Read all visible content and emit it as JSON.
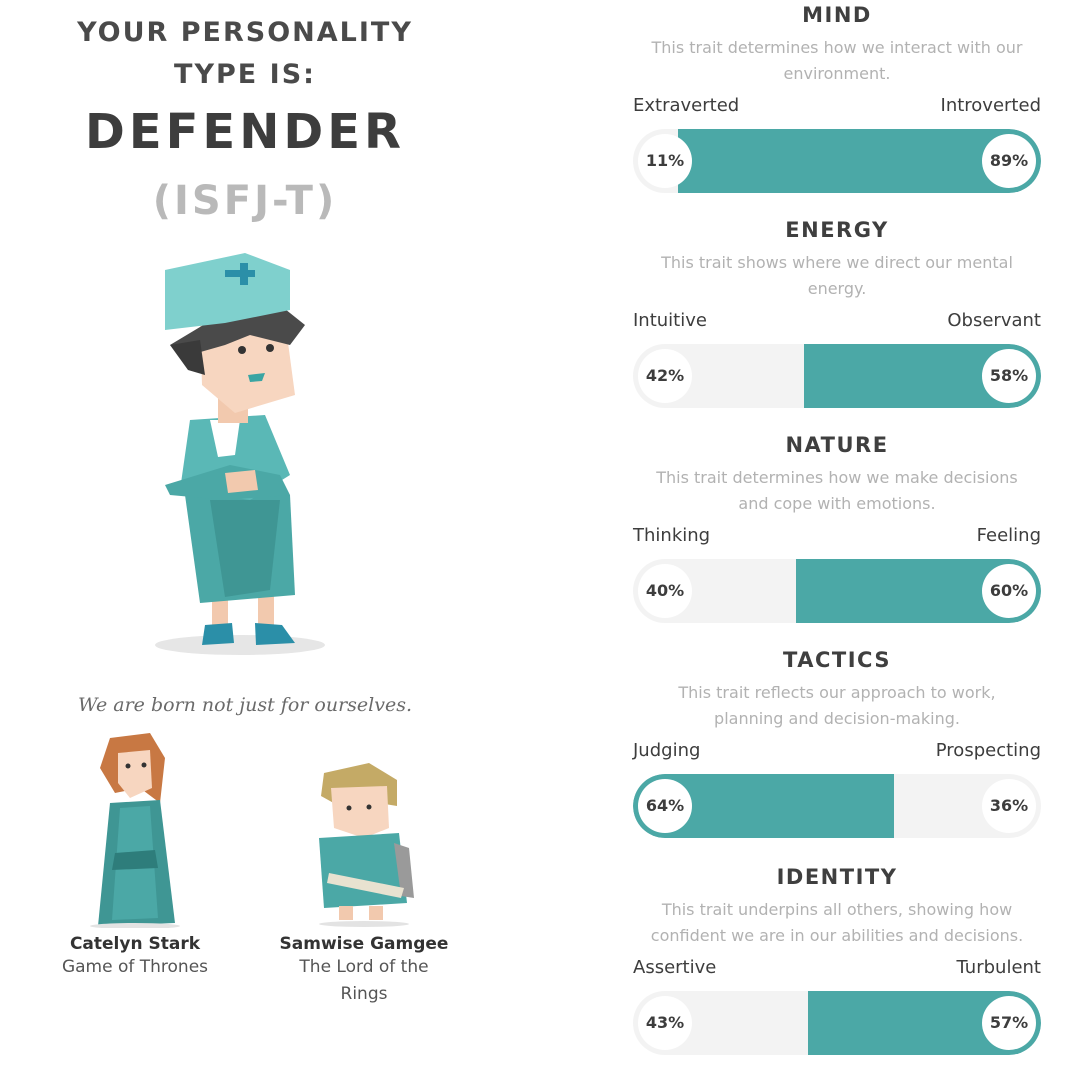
{
  "result": {
    "heading_line1": "YOUR PERSONALITY",
    "heading_line2": "TYPE IS:",
    "type_name": "DEFENDER",
    "type_code": "(ISFJ-T)",
    "quote": "We are born not just for ourselves."
  },
  "characters": [
    {
      "name": "Catelyn Stark",
      "work_line1": "Game of Thrones",
      "work_line2": ""
    },
    {
      "name": "Samwise Gamgee",
      "work_line1": "The Lord of the",
      "work_line2": "Rings"
    }
  ],
  "colors": {
    "accent": "#4ba8a6",
    "track": "#f3f3f3",
    "muted": "#b9b9b9"
  },
  "traits": [
    {
      "title": "MIND",
      "desc_line1": "This trait determines how we interact with our",
      "desc_line2": "environment.",
      "left_label": "Extraverted",
      "right_label": "Introverted",
      "left_pct": "11%",
      "right_pct": "89%",
      "dominant": "right",
      "dominant_value": 89
    },
    {
      "title": "ENERGY",
      "desc_line1": "This trait shows where we direct our mental",
      "desc_line2": "energy.",
      "left_label": "Intuitive",
      "right_label": "Observant",
      "left_pct": "42%",
      "right_pct": "58%",
      "dominant": "right",
      "dominant_value": 58
    },
    {
      "title": "NATURE",
      "desc_line1": "This trait determines how we make decisions",
      "desc_line2": "and cope with emotions.",
      "left_label": "Thinking",
      "right_label": "Feeling",
      "left_pct": "40%",
      "right_pct": "60%",
      "dominant": "right",
      "dominant_value": 60
    },
    {
      "title": "TACTICS",
      "desc_line1": "This trait reflects our approach to work,",
      "desc_line2": "planning and decision-making.",
      "left_label": "Judging",
      "right_label": "Prospecting",
      "left_pct": "64%",
      "right_pct": "36%",
      "dominant": "left",
      "dominant_value": 64
    },
    {
      "title": "IDENTITY",
      "desc_line1": "This trait underpins all others, showing how",
      "desc_line2": "confident we are in our abilities and decisions.",
      "left_label": "Assertive",
      "right_label": "Turbulent",
      "left_pct": "43%",
      "right_pct": "57%",
      "dominant": "right",
      "dominant_value": 57
    }
  ]
}
